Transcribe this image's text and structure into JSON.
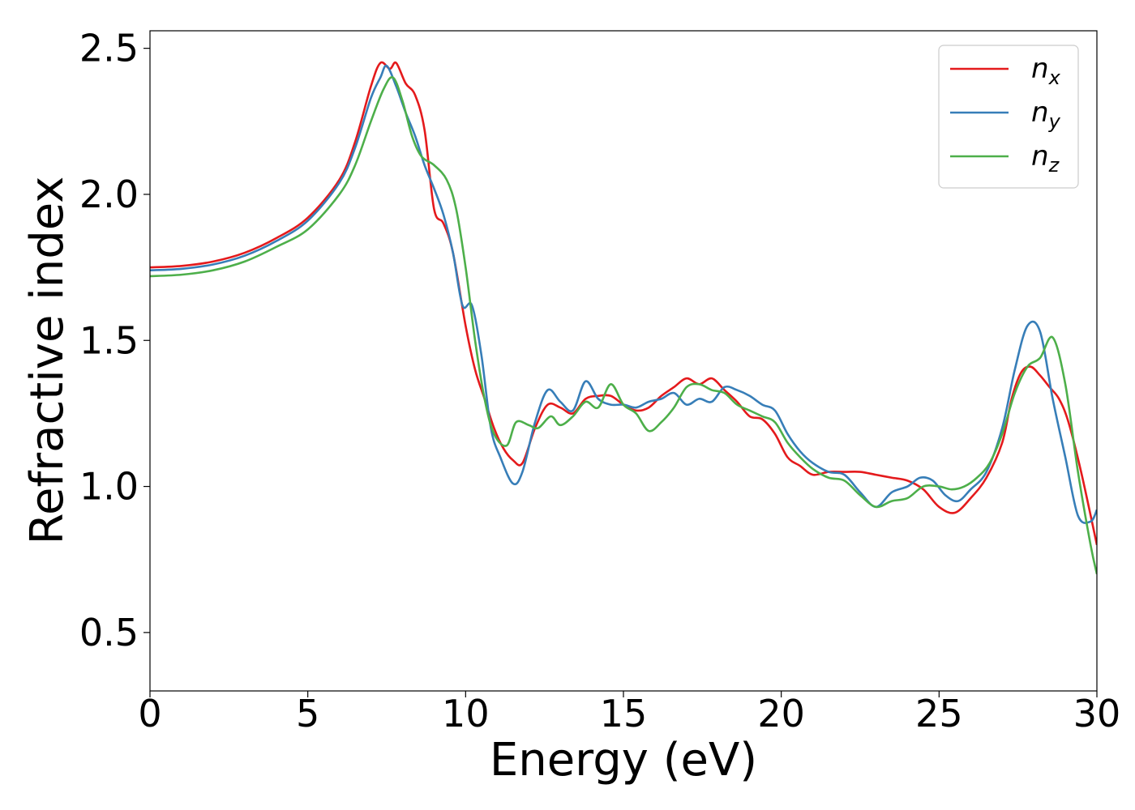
{
  "chart_data": {
    "type": "line",
    "xlabel": "Energy (eV)",
    "ylabel": "Refractive index",
    "xlim": [
      0,
      30
    ],
    "ylim": [
      0.3,
      2.56
    ],
    "xticks": [
      0,
      5,
      10,
      15,
      20,
      25,
      30
    ],
    "xtick_labels": [
      "0",
      "5",
      "10",
      "15",
      "20",
      "25",
      "30"
    ],
    "yticks": [
      0.5,
      1.0,
      1.5,
      2.0,
      2.5
    ],
    "ytick_labels": [
      "0.5",
      "1.0",
      "1.5",
      "2.0",
      "2.5"
    ],
    "grid": false,
    "legend_position": "top-right",
    "series": [
      {
        "name": "n",
        "subscript": "x",
        "color": "#e41a1c",
        "points": [
          [
            0,
            1.75
          ],
          [
            1,
            1.755
          ],
          [
            2,
            1.77
          ],
          [
            3,
            1.8
          ],
          [
            4,
            1.85
          ],
          [
            5,
            1.92
          ],
          [
            6,
            2.05
          ],
          [
            6.5,
            2.18
          ],
          [
            7,
            2.37
          ],
          [
            7.3,
            2.45
          ],
          [
            7.6,
            2.43
          ],
          [
            7.8,
            2.45
          ],
          [
            8.1,
            2.38
          ],
          [
            8.4,
            2.34
          ],
          [
            8.7,
            2.22
          ],
          [
            9.0,
            1.95
          ],
          [
            9.3,
            1.9
          ],
          [
            9.6,
            1.8
          ],
          [
            10.0,
            1.55
          ],
          [
            10.3,
            1.4
          ],
          [
            10.6,
            1.3
          ],
          [
            10.9,
            1.2
          ],
          [
            11.2,
            1.13
          ],
          [
            11.5,
            1.09
          ],
          [
            11.8,
            1.08
          ],
          [
            12.2,
            1.2
          ],
          [
            12.6,
            1.28
          ],
          [
            13.0,
            1.27
          ],
          [
            13.4,
            1.25
          ],
          [
            13.8,
            1.3
          ],
          [
            14.2,
            1.31
          ],
          [
            14.6,
            1.31
          ],
          [
            15.0,
            1.28
          ],
          [
            15.4,
            1.26
          ],
          [
            15.8,
            1.27
          ],
          [
            16.2,
            1.31
          ],
          [
            16.6,
            1.34
          ],
          [
            17.0,
            1.37
          ],
          [
            17.4,
            1.35
          ],
          [
            17.8,
            1.37
          ],
          [
            18.2,
            1.33
          ],
          [
            18.6,
            1.29
          ],
          [
            19.0,
            1.24
          ],
          [
            19.4,
            1.23
          ],
          [
            19.8,
            1.18
          ],
          [
            20.2,
            1.1
          ],
          [
            20.6,
            1.07
          ],
          [
            21.0,
            1.04
          ],
          [
            21.5,
            1.05
          ],
          [
            22.0,
            1.05
          ],
          [
            22.5,
            1.05
          ],
          [
            23.0,
            1.04
          ],
          [
            23.5,
            1.03
          ],
          [
            24.0,
            1.02
          ],
          [
            24.5,
            0.99
          ],
          [
            25.0,
            0.93
          ],
          [
            25.5,
            0.91
          ],
          [
            26.0,
            0.96
          ],
          [
            26.5,
            1.03
          ],
          [
            27.0,
            1.15
          ],
          [
            27.3,
            1.3
          ],
          [
            27.6,
            1.39
          ],
          [
            27.9,
            1.41
          ],
          [
            28.2,
            1.38
          ],
          [
            28.5,
            1.34
          ],
          [
            28.8,
            1.3
          ],
          [
            29.1,
            1.22
          ],
          [
            29.5,
            1.05
          ],
          [
            30.0,
            0.8
          ]
        ]
      },
      {
        "name": "n",
        "subscript": "y",
        "color": "#377eb8",
        "points": [
          [
            0,
            1.74
          ],
          [
            1,
            1.745
          ],
          [
            2,
            1.76
          ],
          [
            3,
            1.79
          ],
          [
            4,
            1.84
          ],
          [
            5,
            1.91
          ],
          [
            6,
            2.04
          ],
          [
            6.5,
            2.16
          ],
          [
            7,
            2.33
          ],
          [
            7.3,
            2.4
          ],
          [
            7.5,
            2.44
          ],
          [
            7.8,
            2.37
          ],
          [
            8.1,
            2.28
          ],
          [
            8.4,
            2.2
          ],
          [
            8.7,
            2.1
          ],
          [
            9.0,
            2.02
          ],
          [
            9.3,
            1.93
          ],
          [
            9.6,
            1.8
          ],
          [
            9.9,
            1.62
          ],
          [
            10.2,
            1.62
          ],
          [
            10.5,
            1.45
          ],
          [
            10.8,
            1.2
          ],
          [
            11.1,
            1.1
          ],
          [
            11.5,
            1.01
          ],
          [
            11.8,
            1.05
          ],
          [
            12.2,
            1.22
          ],
          [
            12.6,
            1.33
          ],
          [
            13.0,
            1.29
          ],
          [
            13.4,
            1.26
          ],
          [
            13.8,
            1.36
          ],
          [
            14.2,
            1.3
          ],
          [
            14.6,
            1.28
          ],
          [
            15.0,
            1.28
          ],
          [
            15.4,
            1.27
          ],
          [
            15.8,
            1.29
          ],
          [
            16.2,
            1.3
          ],
          [
            16.6,
            1.32
          ],
          [
            17.0,
            1.28
          ],
          [
            17.4,
            1.3
          ],
          [
            17.8,
            1.29
          ],
          [
            18.2,
            1.34
          ],
          [
            18.6,
            1.33
          ],
          [
            19.0,
            1.31
          ],
          [
            19.4,
            1.28
          ],
          [
            19.8,
            1.26
          ],
          [
            20.2,
            1.18
          ],
          [
            20.6,
            1.12
          ],
          [
            21.0,
            1.08
          ],
          [
            21.5,
            1.05
          ],
          [
            22.0,
            1.04
          ],
          [
            22.5,
            0.98
          ],
          [
            23.0,
            0.93
          ],
          [
            23.5,
            0.98
          ],
          [
            24.0,
            1.0
          ],
          [
            24.4,
            1.03
          ],
          [
            24.8,
            1.02
          ],
          [
            25.2,
            0.97
          ],
          [
            25.6,
            0.95
          ],
          [
            26.0,
            0.99
          ],
          [
            26.5,
            1.05
          ],
          [
            27.0,
            1.2
          ],
          [
            27.4,
            1.4
          ],
          [
            27.8,
            1.55
          ],
          [
            28.2,
            1.53
          ],
          [
            28.6,
            1.3
          ],
          [
            29.0,
            1.1
          ],
          [
            29.4,
            0.9
          ],
          [
            29.8,
            0.88
          ],
          [
            30.0,
            0.92
          ]
        ]
      },
      {
        "name": "n",
        "subscript": "z",
        "color": "#4daf4a",
        "points": [
          [
            0,
            1.72
          ],
          [
            1,
            1.725
          ],
          [
            2,
            1.74
          ],
          [
            3,
            1.77
          ],
          [
            4,
            1.82
          ],
          [
            5,
            1.88
          ],
          [
            6,
            2.0
          ],
          [
            6.5,
            2.1
          ],
          [
            7,
            2.25
          ],
          [
            7.4,
            2.36
          ],
          [
            7.7,
            2.4
          ],
          [
            8.0,
            2.32
          ],
          [
            8.3,
            2.2
          ],
          [
            8.6,
            2.13
          ],
          [
            9.0,
            2.1
          ],
          [
            9.4,
            2.05
          ],
          [
            9.7,
            1.95
          ],
          [
            10.0,
            1.75
          ],
          [
            10.3,
            1.5
          ],
          [
            10.6,
            1.3
          ],
          [
            10.9,
            1.18
          ],
          [
            11.3,
            1.14
          ],
          [
            11.6,
            1.22
          ],
          [
            12.0,
            1.21
          ],
          [
            12.3,
            1.2
          ],
          [
            12.7,
            1.24
          ],
          [
            13.0,
            1.21
          ],
          [
            13.4,
            1.24
          ],
          [
            13.8,
            1.29
          ],
          [
            14.2,
            1.27
          ],
          [
            14.6,
            1.35
          ],
          [
            15.0,
            1.28
          ],
          [
            15.4,
            1.25
          ],
          [
            15.8,
            1.19
          ],
          [
            16.2,
            1.22
          ],
          [
            16.6,
            1.27
          ],
          [
            17.0,
            1.34
          ],
          [
            17.4,
            1.35
          ],
          [
            17.8,
            1.33
          ],
          [
            18.2,
            1.32
          ],
          [
            18.6,
            1.28
          ],
          [
            19.0,
            1.26
          ],
          [
            19.4,
            1.24
          ],
          [
            19.8,
            1.22
          ],
          [
            20.2,
            1.15
          ],
          [
            20.6,
            1.1
          ],
          [
            21.0,
            1.06
          ],
          [
            21.5,
            1.03
          ],
          [
            22.0,
            1.02
          ],
          [
            22.5,
            0.97
          ],
          [
            23.0,
            0.93
          ],
          [
            23.5,
            0.95
          ],
          [
            24.0,
            0.96
          ],
          [
            24.5,
            1.0
          ],
          [
            25.0,
            1.0
          ],
          [
            25.4,
            0.99
          ],
          [
            25.8,
            1.0
          ],
          [
            26.2,
            1.03
          ],
          [
            26.6,
            1.08
          ],
          [
            27.0,
            1.18
          ],
          [
            27.4,
            1.32
          ],
          [
            27.8,
            1.41
          ],
          [
            28.2,
            1.44
          ],
          [
            28.6,
            1.51
          ],
          [
            29.0,
            1.35
          ],
          [
            29.4,
            1.05
          ],
          [
            29.8,
            0.8
          ],
          [
            30.0,
            0.7
          ]
        ]
      }
    ]
  }
}
